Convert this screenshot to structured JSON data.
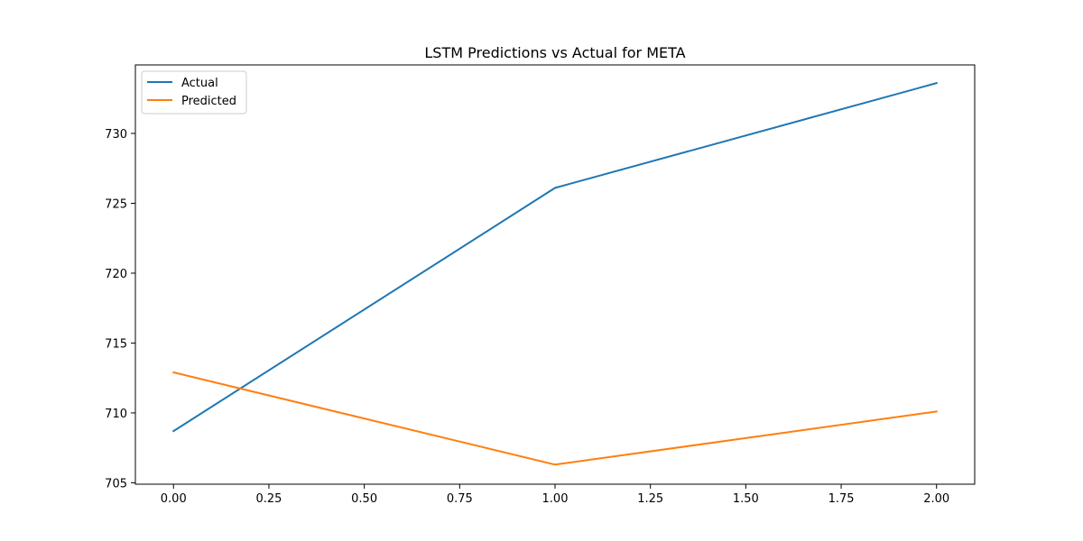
{
  "chart_data": {
    "type": "line",
    "title": "LSTM Predictions vs Actual for META",
    "xlabel": "",
    "ylabel": "",
    "x": [
      0,
      1,
      2
    ],
    "series": [
      {
        "name": "Actual",
        "color": "#1f77b4",
        "values": [
          708.7,
          726.1,
          733.6
        ]
      },
      {
        "name": "Predicted",
        "color": "#ff7f0e",
        "values": [
          712.9,
          706.3,
          710.1
        ]
      }
    ],
    "xlim": [
      -0.1,
      2.1
    ],
    "ylim": [
      704.9,
      734.9
    ],
    "x_ticks": [
      0.0,
      0.25,
      0.5,
      0.75,
      1.0,
      1.25,
      1.5,
      1.75,
      2.0
    ],
    "x_tick_labels": [
      "0.00",
      "0.25",
      "0.50",
      "0.75",
      "1.00",
      "1.25",
      "1.50",
      "1.75",
      "2.00"
    ],
    "y_ticks": [
      705,
      710,
      715,
      720,
      725,
      730
    ],
    "y_tick_labels": [
      "705",
      "710",
      "715",
      "720",
      "725",
      "730"
    ],
    "grid": false,
    "legend_position": "top-left"
  }
}
